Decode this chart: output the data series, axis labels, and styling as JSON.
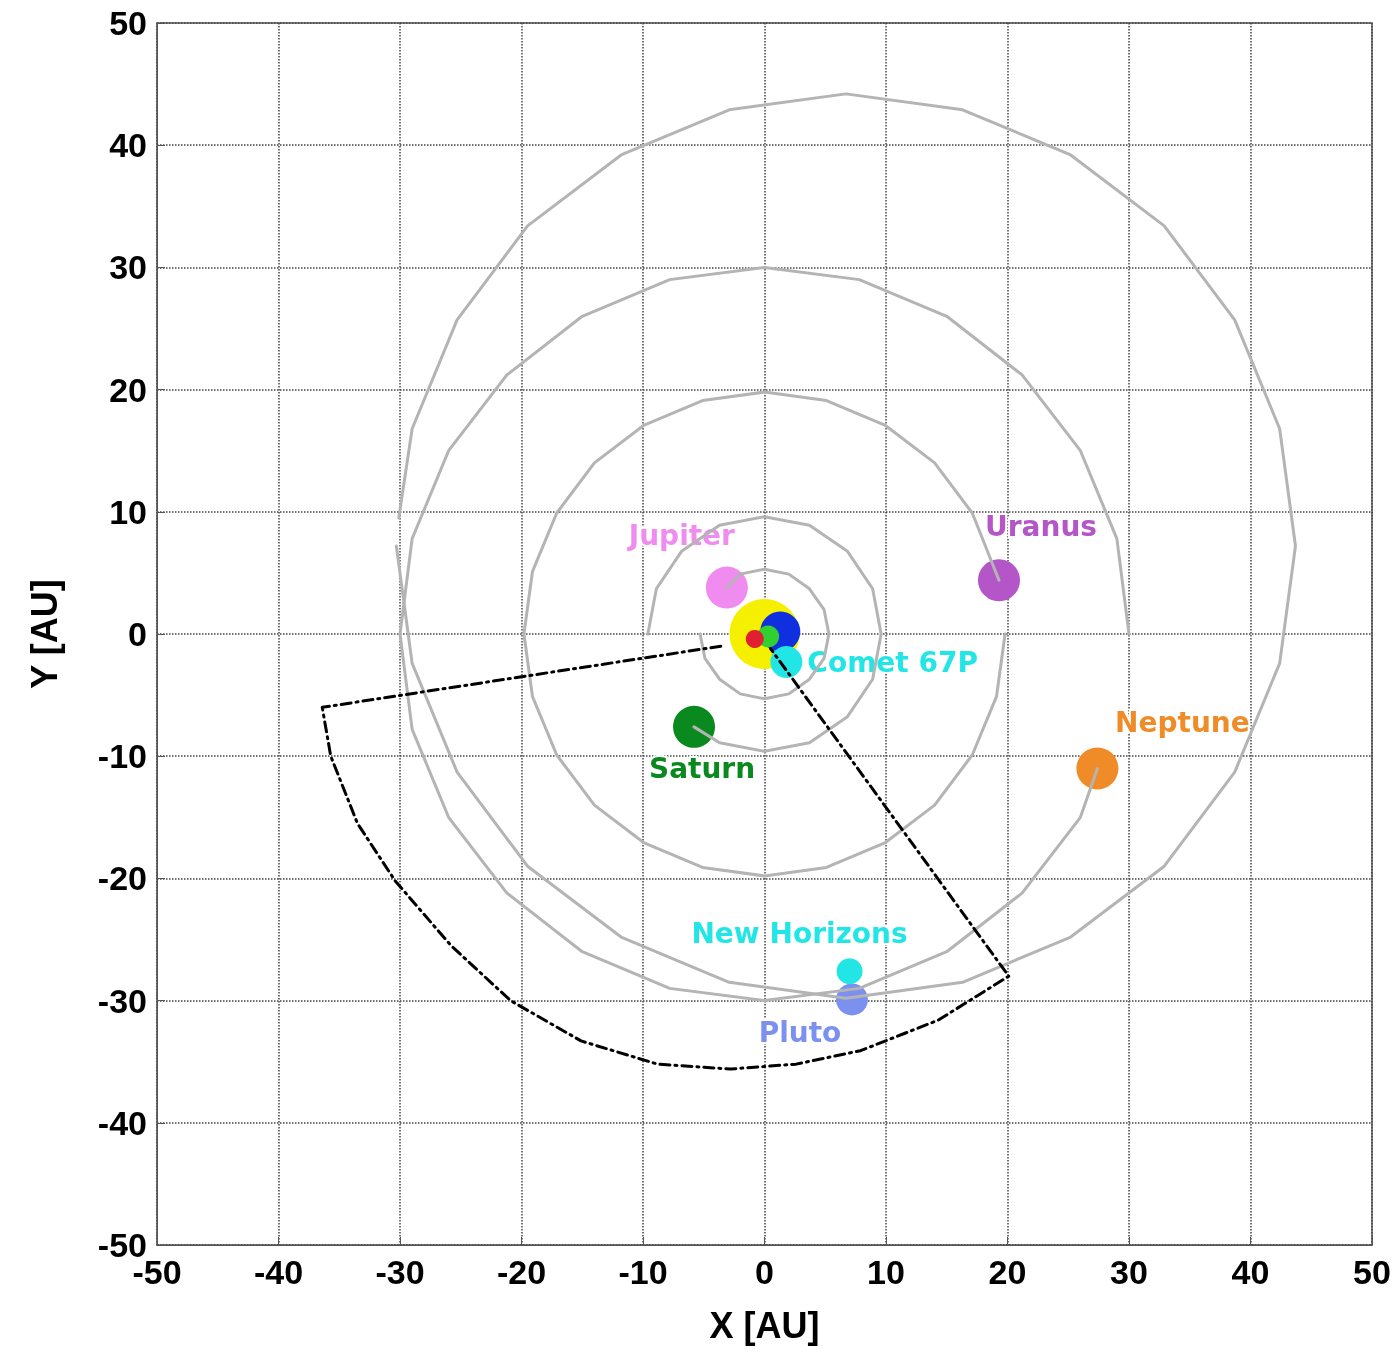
{
  "chart_data": {
    "type": "scatter",
    "xlabel": "X [AU]",
    "ylabel": "Y [AU]",
    "xlim": [
      -50,
      50
    ],
    "xticks": [
      -50,
      -40,
      -30,
      -20,
      -10,
      0,
      10,
      20,
      30,
      40,
      50
    ],
    "ylim": [
      -50,
      50
    ],
    "yticks": [
      -50,
      -40,
      -30,
      -20,
      -10,
      0,
      10,
      20,
      30,
      40,
      50
    ],
    "grid": true,
    "marker": "circle",
    "series": [
      {
        "type": "line",
        "marker": "none",
        "color": "#b4b4b4",
        "x": [
          -3.1,
          -2.0,
          0,
          2.0,
          3.7,
          4.9,
          5.3,
          4.9,
          3.7,
          2.0,
          0,
          -2.0,
          -3.7,
          -4.9,
          -5.3
        ],
        "values": [
          3.8,
          4.9,
          5.3,
          4.9,
          3.7,
          2.0,
          0,
          -2.0,
          -3.7,
          -4.9,
          -5.3,
          -4.9,
          -3.7,
          -2.0,
          0
        ]
      },
      {
        "type": "line",
        "marker": "none",
        "color": "#b4b4b4",
        "x": [
          -5.8,
          -3.7,
          0,
          3.7,
          6.8,
          8.9,
          9.6,
          8.9,
          6.8,
          3.7,
          0,
          -3.7,
          -6.8,
          -8.9,
          -9.6
        ],
        "values": [
          -7.6,
          -8.9,
          -9.6,
          -8.9,
          -6.8,
          -3.7,
          0,
          3.7,
          6.8,
          8.9,
          9.6,
          8.9,
          6.8,
          3.7,
          0
        ]
      },
      {
        "type": "line",
        "marker": "none",
        "color": "#b4b4b4",
        "x": [
          19.8,
          19.1,
          17.1,
          14.0,
          9.9,
          5.1,
          0,
          -5.1,
          -9.9,
          -14.0,
          -17.1,
          -19.1,
          -19.8,
          -19.1,
          -17.1,
          -14.0,
          -9.9,
          -5.1,
          0,
          5.1,
          9.9,
          14.0,
          17.1,
          19.3
        ],
        "values": [
          0,
          -5.1,
          -9.9,
          -14.0,
          -17.1,
          -19.1,
          -19.8,
          -19.1,
          -17.1,
          -14.0,
          -9.9,
          -5.1,
          0,
          5.1,
          9.9,
          14.0,
          17.1,
          19.1,
          19.8,
          19.1,
          17.1,
          14.0,
          9.9,
          4.4
        ]
      },
      {
        "type": "line",
        "marker": "none",
        "color": "#b4b4b4",
        "x": [
          30,
          29.0,
          26.0,
          21.2,
          15.0,
          7.8,
          0,
          -7.8,
          -15.0,
          -21.2,
          -26.0,
          -29.0,
          -30,
          -29.0,
          -26.0,
          -21.2,
          -15.0,
          -7.8,
          0,
          7.8,
          15.0,
          21.2,
          26.0,
          27.4
        ],
        "values": [
          0,
          7.8,
          15.0,
          21.2,
          26.0,
          29.0,
          30,
          29.0,
          26.0,
          21.2,
          15.0,
          7.8,
          0,
          -7.8,
          -15.0,
          -21.2,
          -26.0,
          -29.0,
          -30,
          -29.0,
          -26.0,
          -21.2,
          -15.0,
          -11.0
        ]
      },
      {
        "type": "line",
        "marker": "none",
        "color": "#b4b4b4",
        "x": [
          -30.1,
          -29.0,
          -25.3,
          -19.5,
          -11.8,
          -2.9,
          6.7,
          16.3,
          25.2,
          32.9,
          38.7,
          42.4,
          43.7,
          42.4,
          38.7,
          32.9,
          25.2,
          16.3,
          6.7,
          -2.9,
          -11.8,
          -19.5,
          -25.3,
          -29.0,
          -30.3
        ],
        "values": [
          9.5,
          16.8,
          25.7,
          33.4,
          39.2,
          42.9,
          44.2,
          42.9,
          39.2,
          33.4,
          25.7,
          16.8,
          7.2,
          -2.4,
          -11.3,
          -19.0,
          -24.8,
          -28.5,
          -29.8,
          -28.5,
          -24.8,
          -19.0,
          -11.3,
          -2.4,
          7.2
        ]
      },
      {
        "type": "line",
        "marker": "none",
        "line_style": "dashed",
        "color": "#000000",
        "x": [
          -3.6,
          -36.4,
          -35.7,
          -33.5,
          -30.4,
          -25.8,
          -20.9,
          -15.1,
          -8.8,
          -2.8,
          2.6,
          7.9,
          14.3,
          20.1,
          0.5
        ],
        "values": [
          -1.0,
          -6.0,
          -10.0,
          -15.5,
          -20.2,
          -25.5,
          -30.0,
          -33.3,
          -35.2,
          -35.6,
          -35.2,
          -34.1,
          -31.6,
          -28.0,
          -1.2
        ]
      },
      {
        "color": "#f5f000",
        "x": [
          0
        ],
        "values": [
          0
        ]
      },
      {
        "color": "#1030e0",
        "x": [
          1.3
        ],
        "values": [
          0.2
        ]
      },
      {
        "color": "#30d030",
        "x": [
          0.3
        ],
        "values": [
          -0.2
        ]
      },
      {
        "color": "#e02030",
        "x": [
          -0.8
        ],
        "values": [
          -0.4
        ]
      },
      {
        "name": "Jupiter",
        "color": "#f08cf0",
        "x": [
          -3.1
        ],
        "values": [
          3.8
        ]
      },
      {
        "name": "Saturn",
        "color": "#0a8a1e",
        "x": [
          -5.8
        ],
        "values": [
          -7.6
        ]
      },
      {
        "name": "Uranus",
        "color": "#b455c8",
        "x": [
          19.3
        ],
        "values": [
          4.4
        ]
      },
      {
        "name": "Neptune",
        "color": "#f08c28",
        "x": [
          27.4
        ],
        "values": [
          -11.0
        ]
      },
      {
        "name": "Pluto",
        "color": "#7c90f0",
        "x": [
          7.2
        ],
        "values": [
          -29.9
        ]
      },
      {
        "name": "New Horizons",
        "color": "#22e6e6",
        "x": [
          7.0
        ],
        "values": [
          -27.6
        ]
      },
      {
        "name": "Comet 67P",
        "color": "#22e6e6",
        "x": [
          1.8
        ],
        "values": [
          -2.3
        ]
      }
    ]
  }
}
